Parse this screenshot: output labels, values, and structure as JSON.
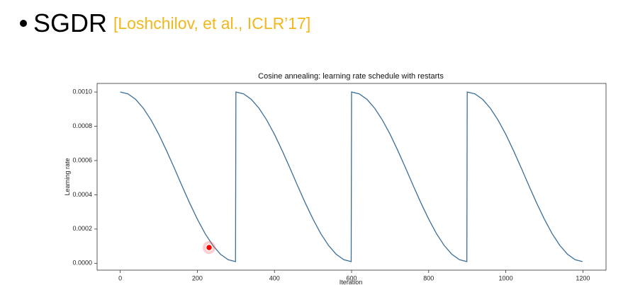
{
  "slide": {
    "bullet": "SGDR",
    "citation": "[Loshchilov, et al., ICLR’17]"
  },
  "chart_data": {
    "type": "line",
    "title": "Cosine annealing: learning rate schedule with restarts",
    "xlabel": "Iteration",
    "ylabel": "Learning rate",
    "x": [
      0,
      20,
      40,
      60,
      80,
      100,
      120,
      140,
      160,
      180,
      200,
      220,
      240,
      260,
      280,
      299,
      300,
      320,
      340,
      360,
      380,
      400,
      420,
      440,
      460,
      480,
      500,
      520,
      540,
      560,
      580,
      599,
      600,
      620,
      640,
      660,
      680,
      700,
      720,
      740,
      760,
      780,
      800,
      820,
      840,
      860,
      880,
      899,
      900,
      920,
      940,
      960,
      980,
      1000,
      1020,
      1040,
      1060,
      1080,
      1100,
      1120,
      1140,
      1160,
      1180,
      1199
    ],
    "series": [
      {
        "name": "Learning rate",
        "color": "#3c6f96",
        "values": [
          0.001,
          0.000989,
          0.000957,
          0.000905,
          0.000836,
          0.000753,
          0.000658,
          0.000557,
          0.000453,
          0.000352,
          0.000258,
          0.000174,
          0.000105,
          5.3e-05,
          2.1e-05,
          1e-05,
          0.001,
          0.000989,
          0.000957,
          0.000905,
          0.000836,
          0.000753,
          0.000658,
          0.000557,
          0.000453,
          0.000352,
          0.000258,
          0.000174,
          0.000105,
          5.3e-05,
          2.1e-05,
          1e-05,
          0.001,
          0.000989,
          0.000957,
          0.000905,
          0.000836,
          0.000753,
          0.000658,
          0.000557,
          0.000453,
          0.000352,
          0.000258,
          0.000174,
          0.000105,
          5.3e-05,
          2.1e-05,
          1e-05,
          0.001,
          0.000989,
          0.000957,
          0.000905,
          0.000836,
          0.000753,
          0.000658,
          0.000557,
          0.000453,
          0.000352,
          0.000258,
          0.000174,
          0.000105,
          5.3e-05,
          2.1e-05,
          1e-05
        ]
      }
    ],
    "xlim": [
      -60,
      1260
    ],
    "xticks": [
      0,
      200,
      400,
      600,
      800,
      1000,
      1200
    ],
    "ylim": [
      -4e-05,
      0.00105
    ],
    "yticks": [
      {
        "value": 0,
        "label": "0.0000"
      },
      {
        "value": 0.0002,
        "label": "0.0002"
      },
      {
        "value": 0.0004,
        "label": "0.0004"
      },
      {
        "value": 0.0006,
        "label": "0.0006"
      },
      {
        "value": 0.0008,
        "label": "0.0008"
      },
      {
        "value": 0.001,
        "label": "0.0010"
      }
    ],
    "grid": false
  }
}
